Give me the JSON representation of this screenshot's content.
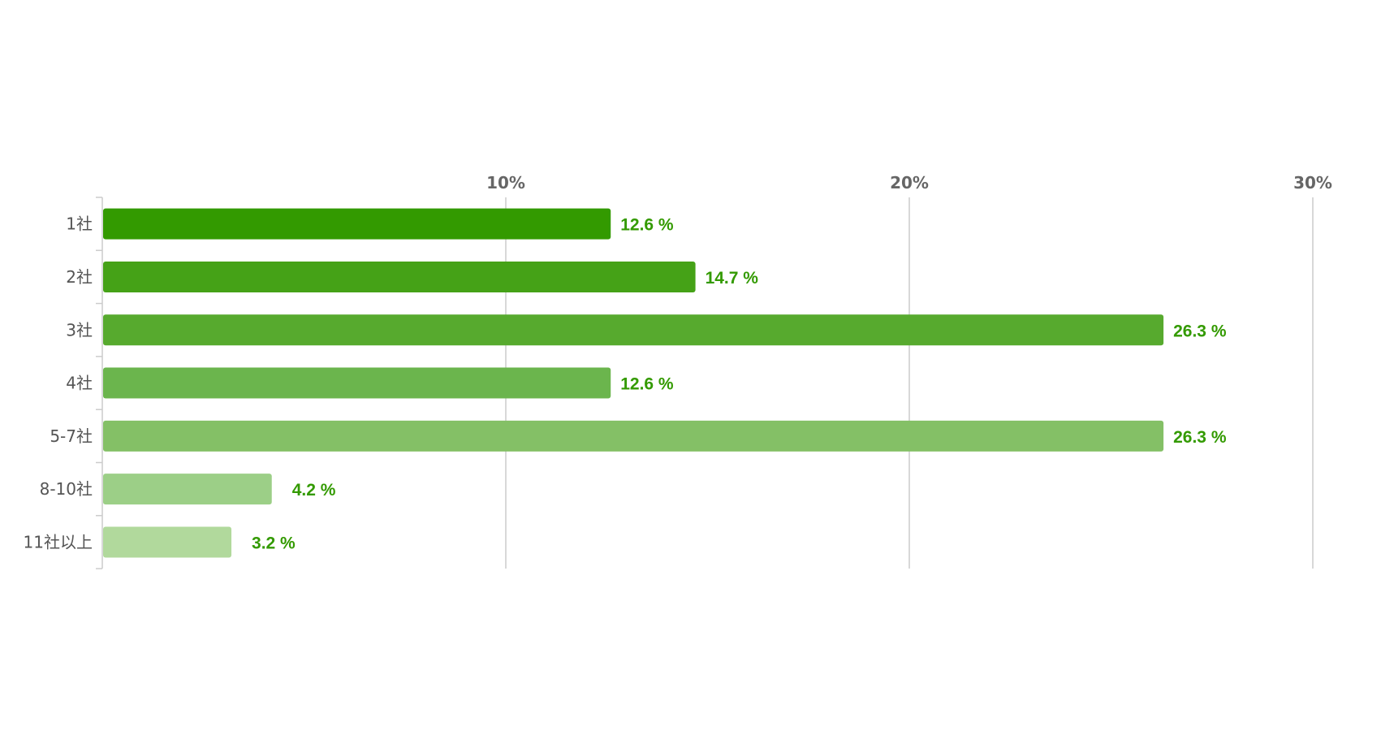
{
  "chart_data": {
    "type": "bar",
    "orientation": "horizontal",
    "title": "",
    "xlabel": "",
    "ylabel": "",
    "categories": [
      "1社",
      "2社",
      "3社",
      "4社",
      "5-7社",
      "8-10社",
      "11社以上"
    ],
    "values": [
      12.6,
      14.7,
      26.3,
      12.6,
      26.3,
      4.2,
      3.2
    ],
    "value_labels": [
      "12.6 %",
      "14.7 %",
      "26.3 %",
      "12.6 %",
      "26.3 %",
      "4.2 %",
      "3.2 %"
    ],
    "xlim": [
      0,
      30
    ],
    "ticks": [
      10,
      20,
      30
    ],
    "tick_labels": [
      "10%",
      "20%",
      "30%"
    ],
    "grid": true,
    "legend": "none",
    "bar_colors": [
      "#339a00",
      "#45a217",
      "#57aa2e",
      "#6bb54d",
      "#84c066",
      "#9ccf87",
      "#b1d99c"
    ],
    "value_label_color": "#339a00",
    "axis_label_color": "#666666",
    "gridline_color": "#cccccc"
  }
}
